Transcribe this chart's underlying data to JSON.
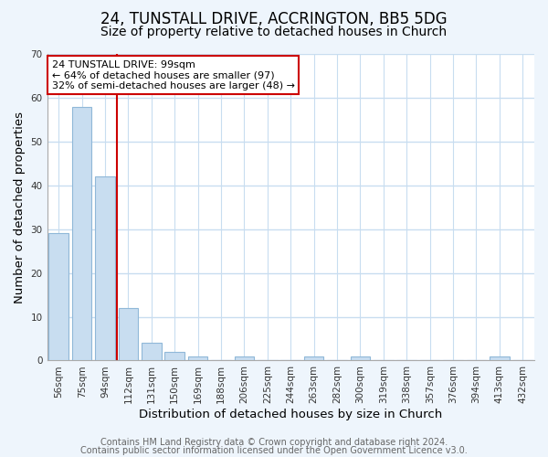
{
  "title": "24, TUNSTALL DRIVE, ACCRINGTON, BB5 5DG",
  "subtitle": "Size of property relative to detached houses in Church",
  "xlabel": "Distribution of detached houses by size in Church",
  "ylabel": "Number of detached properties",
  "bar_labels": [
    "56sqm",
    "75sqm",
    "94sqm",
    "112sqm",
    "131sqm",
    "150sqm",
    "169sqm",
    "188sqm",
    "206sqm",
    "225sqm",
    "244sqm",
    "263sqm",
    "282sqm",
    "300sqm",
    "319sqm",
    "338sqm",
    "357sqm",
    "376sqm",
    "394sqm",
    "413sqm",
    "432sqm"
  ],
  "bar_values": [
    29,
    58,
    42,
    12,
    4,
    2,
    1,
    0,
    1,
    0,
    0,
    1,
    0,
    1,
    0,
    0,
    0,
    0,
    0,
    1,
    0
  ],
  "bar_color": "#c8ddf0",
  "bar_edge_color": "#90b8d8",
  "vline_color": "#cc0000",
  "vline_pos": 2.5,
  "ylim": [
    0,
    70
  ],
  "yticks": [
    0,
    10,
    20,
    30,
    40,
    50,
    60,
    70
  ],
  "annotation_text": "24 TUNSTALL DRIVE: 99sqm\n← 64% of detached houses are smaller (97)\n32% of semi-detached houses are larger (48) →",
  "annotation_box_color": "#ffffff",
  "annotation_box_edge": "#cc0000",
  "footer_line1": "Contains HM Land Registry data © Crown copyright and database right 2024.",
  "footer_line2": "Contains public sector information licensed under the Open Government Licence v3.0.",
  "plot_bg_color": "#ffffff",
  "fig_bg_color": "#eef5fc",
  "grid_color": "#c8ddf0",
  "title_fontsize": 12,
  "subtitle_fontsize": 10,
  "axis_label_fontsize": 9.5,
  "tick_fontsize": 7.5,
  "annotation_fontsize": 8,
  "footer_fontsize": 7
}
